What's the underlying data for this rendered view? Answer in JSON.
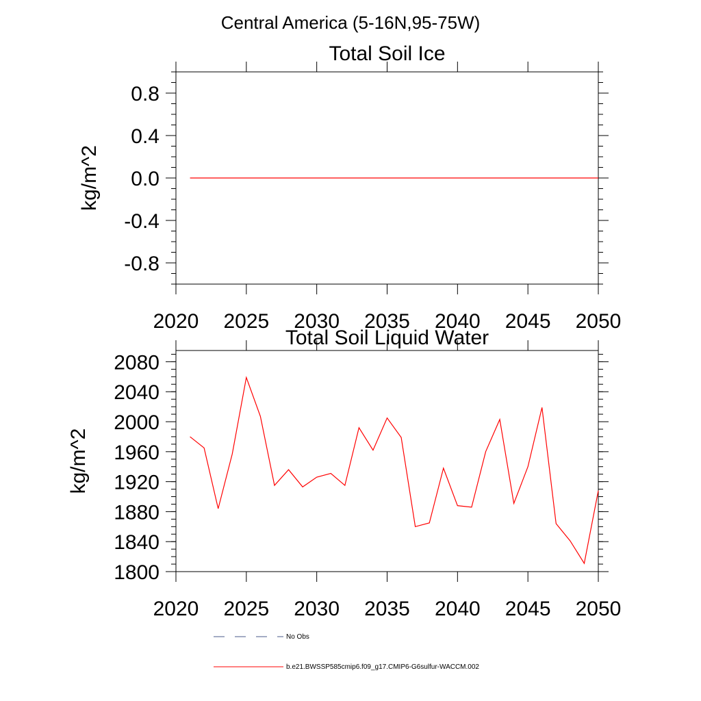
{
  "figure": {
    "suptitle": "Central America (5-16N,95-75W)"
  },
  "legend": {
    "entries": [
      {
        "label": "No Obs",
        "style": "dashed",
        "color": "#4a5a8a"
      },
      {
        "label": "b.e21.BWSSP585cmip6.f09_g17.CMIP6-G6sulfur-WACCM.002",
        "style": "solid",
        "color": "#ff0000"
      }
    ]
  },
  "chart_data": [
    {
      "type": "line",
      "title": "Total Soil Ice",
      "xlabel": "",
      "ylabel": "kg/m^2",
      "xlim": [
        2020,
        2050
      ],
      "ylim": [
        -1.0,
        1.0
      ],
      "xticks": [
        2020,
        2025,
        2030,
        2035,
        2040,
        2045,
        2050
      ],
      "yticks": [
        -0.8,
        -0.4,
        0.0,
        0.4,
        0.8
      ],
      "ytick_labels": [
        "-0.8",
        "-0.4",
        "0.0",
        "0.4",
        "0.8"
      ],
      "grid": false,
      "series": [
        {
          "name": "b.e21.BWSSP585cmip6.f09_g17.CMIP6-G6sulfur-WACCM.002",
          "color": "#ff0000",
          "x": [
            2021,
            2050
          ],
          "values": [
            0.0,
            0.0
          ]
        }
      ]
    },
    {
      "type": "line",
      "title": "Total Soil Liquid Water",
      "xlabel": "",
      "ylabel": "kg/m^2",
      "xlim": [
        2020,
        2050
      ],
      "ylim": [
        1800,
        2095
      ],
      "xticks": [
        2020,
        2025,
        2030,
        2035,
        2040,
        2045,
        2050
      ],
      "yticks": [
        1800,
        1840,
        1880,
        1920,
        1960,
        2000,
        2040,
        2080
      ],
      "ytick_labels": [
        "1800",
        "1840",
        "1880",
        "1920",
        "1960",
        "2000",
        "2040",
        "2080"
      ],
      "grid": false,
      "series": [
        {
          "name": "b.e21.BWSSP585cmip6.f09_g17.CMIP6-G6sulfur-WACCM.002",
          "color": "#ff0000",
          "x": [
            2021,
            2022,
            2023,
            2024,
            2025,
            2026,
            2027,
            2028,
            2029,
            2030,
            2031,
            2032,
            2033,
            2034,
            2035,
            2036,
            2037,
            2038,
            2039,
            2040,
            2041,
            2042,
            2043,
            2044,
            2045,
            2046,
            2047,
            2048,
            2049,
            2050
          ],
          "values": [
            1980,
            1965,
            1884,
            1957,
            2059,
            2007,
            1915,
            1936,
            1913,
            1926,
            1931,
            1915,
            1992,
            1962,
            2005,
            1979,
            1860,
            1865,
            1938,
            1888,
            1886,
            1960,
            2003,
            1891,
            1940,
            2019,
            1864,
            1841,
            1811,
            1908
          ]
        }
      ]
    }
  ]
}
